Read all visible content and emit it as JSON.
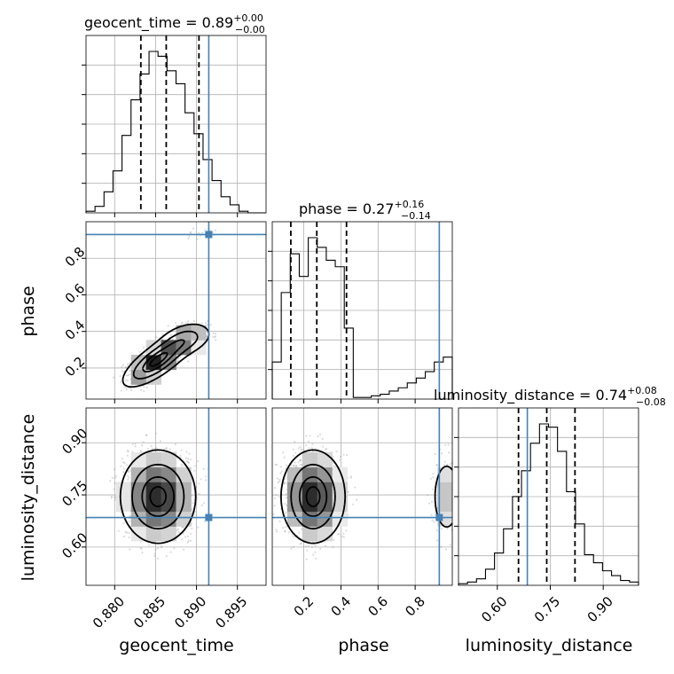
{
  "chart_data": {
    "type": "corner",
    "parameters": [
      "geocent_time",
      "phase",
      "luminosity_distance"
    ],
    "truth": {
      "geocent_time": 0.8915,
      "phase": 0.93,
      "luminosity_distance": 0.685
    },
    "colors": {
      "truth": "#4682b4",
      "contour": "#000000",
      "grid": "#b0b0b0"
    },
    "titles": {
      "geocent_time": {
        "text": "geocent_time = 0.89",
        "plus": "+0.00",
        "minus": "−0.00"
      },
      "phase": {
        "text": "phase = 0.27",
        "plus": "+0.16",
        "minus": "−0.14"
      },
      "luminosity_distance": {
        "text": "luminosity_distance = 0.74",
        "plus": "+0.08",
        "minus": "−0.08"
      }
    },
    "axis_labels": {
      "geocent_time": "geocent_time",
      "phase": "phase",
      "luminosity_distance": "luminosity_distance"
    },
    "ranges": {
      "geocent_time": [
        0.8765,
        0.8985
      ],
      "phase": [
        0.03,
        1.0
      ],
      "luminosity_distance": [
        0.49,
        1.0
      ]
    },
    "ticks": {
      "geocent_time": {
        "values": [
          0.88,
          0.885,
          0.89,
          0.895
        ],
        "labels": [
          "0.880",
          "0.885",
          "0.890",
          "0.895"
        ]
      },
      "phase_x": {
        "values": [
          0.2,
          0.4,
          0.6,
          0.8
        ],
        "labels": [
          "0.2",
          "0.4",
          "0.6",
          "0.8"
        ]
      },
      "phase_y": {
        "values": [
          0.2,
          0.4,
          0.6,
          0.8
        ],
        "labels": [
          "0.2",
          "0.4",
          "0.6",
          "0.8"
        ]
      },
      "luminosity_distance": {
        "values": [
          0.6,
          0.75,
          0.9
        ],
        "labels": [
          "0.60",
          "0.75",
          "0.90"
        ]
      }
    },
    "quantiles": {
      "geocent_time": [
        0.8832,
        0.8863,
        0.8903
      ],
      "phase": [
        0.13,
        0.27,
        0.43
      ],
      "luminosity_distance": [
        0.66,
        0.74,
        0.82
      ]
    },
    "histograms": {
      "geocent_time": {
        "edges": [
          0.8765,
          0.8776,
          0.8787,
          0.8798,
          0.8809,
          0.882,
          0.8831,
          0.8842,
          0.8853,
          0.8864,
          0.8875,
          0.8886,
          0.8897,
          0.8908,
          0.8919,
          0.893,
          0.8941,
          0.8952,
          0.8963,
          0.8974,
          0.8985
        ],
        "counts": [
          0.01,
          0.04,
          0.13,
          0.26,
          0.48,
          0.7,
          0.86,
          1.0,
          0.97,
          0.88,
          0.8,
          0.62,
          0.49,
          0.33,
          0.2,
          0.1,
          0.05,
          0.01,
          0.0,
          0.0
        ]
      },
      "phase": {
        "edges": [
          0.03,
          0.0785,
          0.127,
          0.1755,
          0.224,
          0.2725,
          0.321,
          0.3695,
          0.418,
          0.4665,
          0.515,
          0.5635,
          0.612,
          0.6605,
          0.709,
          0.7575,
          0.806,
          0.8545,
          0.903,
          0.9515,
          1.0
        ],
        "counts": [
          0.23,
          0.66,
          0.9,
          0.76,
          1.0,
          0.94,
          0.86,
          0.82,
          0.44,
          0.01,
          0.01,
          0.02,
          0.03,
          0.05,
          0.07,
          0.1,
          0.13,
          0.17,
          0.23,
          0.26
        ]
      },
      "luminosity_distance": {
        "edges": [
          0.49,
          0.5155,
          0.541,
          0.5665,
          0.592,
          0.6175,
          0.643,
          0.6685,
          0.694,
          0.7195,
          0.745,
          0.7705,
          0.796,
          0.8215,
          0.847,
          0.8725,
          0.898,
          0.9235,
          0.949,
          0.9745,
          1.0
        ],
        "counts": [
          0.01,
          0.02,
          0.04,
          0.1,
          0.2,
          0.35,
          0.55,
          0.71,
          0.88,
          1.0,
          0.98,
          0.83,
          0.58,
          0.38,
          0.19,
          0.14,
          0.09,
          0.06,
          0.03,
          0.02
        ]
      }
    },
    "pair_density": [
      {
        "x": "geocent_time",
        "y": "phase",
        "blobs": [
          {
            "cx": 0.8852,
            "cy": 0.24,
            "sx": 0.0022,
            "sy": 0.075,
            "rho": 0.75,
            "w": 1.0
          },
          {
            "cx": 0.8888,
            "cy": 0.36,
            "sx": 0.0018,
            "sy": 0.05,
            "rho": 0.3,
            "w": 0.45
          },
          {
            "cx": 0.8905,
            "cy": 0.93,
            "sx": 0.0018,
            "sy": 0.03,
            "rho": 0.4,
            "w": 0.16
          }
        ]
      },
      {
        "x": "geocent_time",
        "y": "luminosity_distance",
        "blobs": [
          {
            "cx": 0.8853,
            "cy": 0.745,
            "sx": 0.0024,
            "sy": 0.07,
            "rho": 0.0,
            "w": 1.0
          }
        ]
      },
      {
        "x": "phase",
        "y": "luminosity_distance",
        "blobs": [
          {
            "cx": 0.25,
            "cy": 0.745,
            "sx": 0.09,
            "sy": 0.07,
            "rho": 0.0,
            "w": 1.0
          },
          {
            "cx": 0.97,
            "cy": 0.745,
            "sx": 0.05,
            "sy": 0.07,
            "rho": 0.0,
            "w": 0.35
          }
        ]
      }
    ]
  }
}
